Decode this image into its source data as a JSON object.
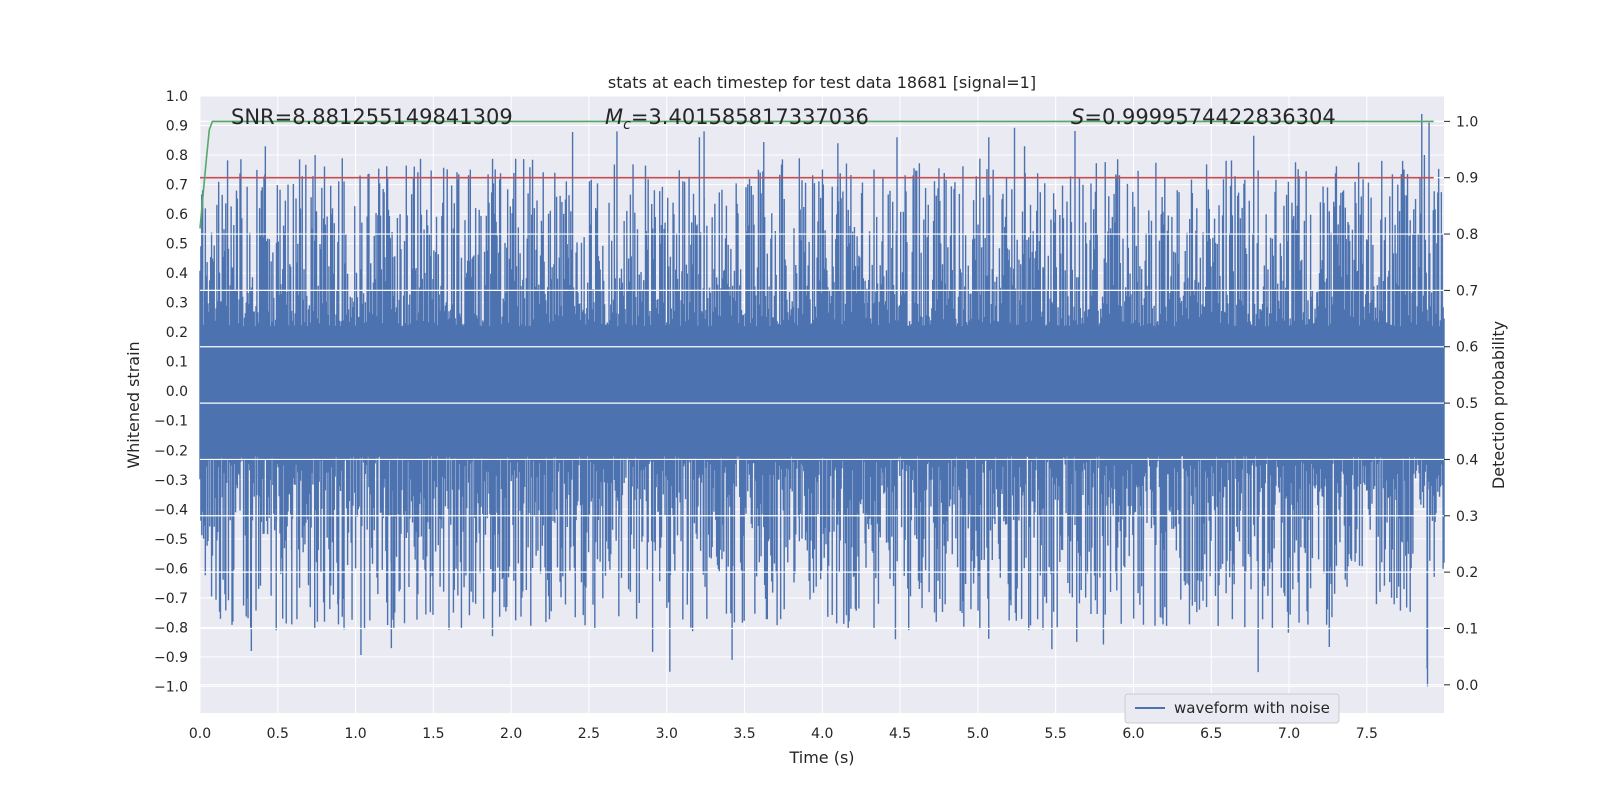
{
  "chart_data": {
    "type": "line",
    "title": "stats at each timestep for test data 18681 [signal=1]",
    "xlabel": "Time (s)",
    "ylabel": "Whitened strain",
    "y2label": "Detection probability",
    "xlim": [
      0,
      7.996
    ],
    "ylim": [
      -1.09,
      1.0
    ],
    "y2lim": [
      -0.05,
      1.045
    ],
    "xticks": [
      "0.0",
      "0.5",
      "1.0",
      "1.5",
      "2.0",
      "2.5",
      "3.0",
      "3.5",
      "4.0",
      "4.5",
      "5.0",
      "5.5",
      "6.0",
      "6.5",
      "7.0",
      "7.5"
    ],
    "yticks": [
      "1.0",
      "0.9",
      "0.8",
      "0.7",
      "0.6",
      "0.5",
      "0.4",
      "0.3",
      "0.2",
      "0.1",
      "0.0",
      "−0.1",
      "−0.2",
      "−0.3",
      "−0.4",
      "−0.5",
      "−0.6",
      "−0.7",
      "−0.8",
      "−0.9",
      "−1.0"
    ],
    "y2ticks": [
      "1.0",
      "0.9",
      "0.8",
      "0.7",
      "0.6",
      "0.5",
      "0.4",
      "0.3",
      "0.2",
      "0.1",
      "0.0"
    ],
    "grid": true,
    "legend_placement": "lower-right",
    "annotations": {
      "snr": "SNR=8.881255149841309",
      "mc_symbol": "M",
      "mc_sub": "c",
      "mc_value": "=3.401585817337036",
      "s_symbol": "S",
      "s_value": "=0.9999574422836304"
    },
    "series": [
      {
        "name": "waveform with noise",
        "axis": "left",
        "color": "#4c72b0",
        "kind": "noise-waveform",
        "envelope_typical": [
          -0.45,
          0.45
        ],
        "peaks": [
          {
            "x": 0.33,
            "y": -0.88
          },
          {
            "x": 0.42,
            "y": 0.83
          },
          {
            "x": 0.49,
            "y": -0.81
          },
          {
            "x": 0.59,
            "y": -0.79
          },
          {
            "x": 0.74,
            "y": 0.8
          },
          {
            "x": 0.89,
            "y": -0.79
          },
          {
            "x": 1.23,
            "y": -0.87
          },
          {
            "x": 1.88,
            "y": -0.83
          },
          {
            "x": 2.68,
            "y": 0.88
          },
          {
            "x": 3.02,
            "y": -0.95
          },
          {
            "x": 3.21,
            "y": 0.86
          },
          {
            "x": 3.24,
            "y": 0.88
          },
          {
            "x": 3.42,
            "y": -0.91
          },
          {
            "x": 4.1,
            "y": 0.84
          },
          {
            "x": 4.48,
            "y": 0.86
          },
          {
            "x": 4.47,
            "y": -0.84
          },
          {
            "x": 5.07,
            "y": 0.86
          },
          {
            "x": 5.3,
            "y": 0.83
          },
          {
            "x": 6.19,
            "y": -0.79
          },
          {
            "x": 6.36,
            "y": -0.79
          },
          {
            "x": 7.73,
            "y": 0.78
          },
          {
            "x": 7.87,
            "y": 0.8
          },
          {
            "x": 7.9,
            "y": 0.91
          },
          {
            "x": 7.89,
            "y": -1.0
          }
        ]
      },
      {
        "axis": "right",
        "color": "#55a868",
        "x": [
          0,
          0.02,
          0.04,
          0.06,
          0.08,
          0.2,
          7.93
        ],
        "y": [
          0.81,
          0.87,
          0.93,
          0.985,
          1.0,
          1.0,
          1.0
        ]
      },
      {
        "axis": "right",
        "color": "#c44e52",
        "x": [
          0,
          7.93
        ],
        "y": [
          0.9,
          0.9
        ]
      }
    ],
    "colors": {
      "plot_background": "#eaeaf2",
      "grid": "#ffffff",
      "text": "#262626"
    }
  }
}
